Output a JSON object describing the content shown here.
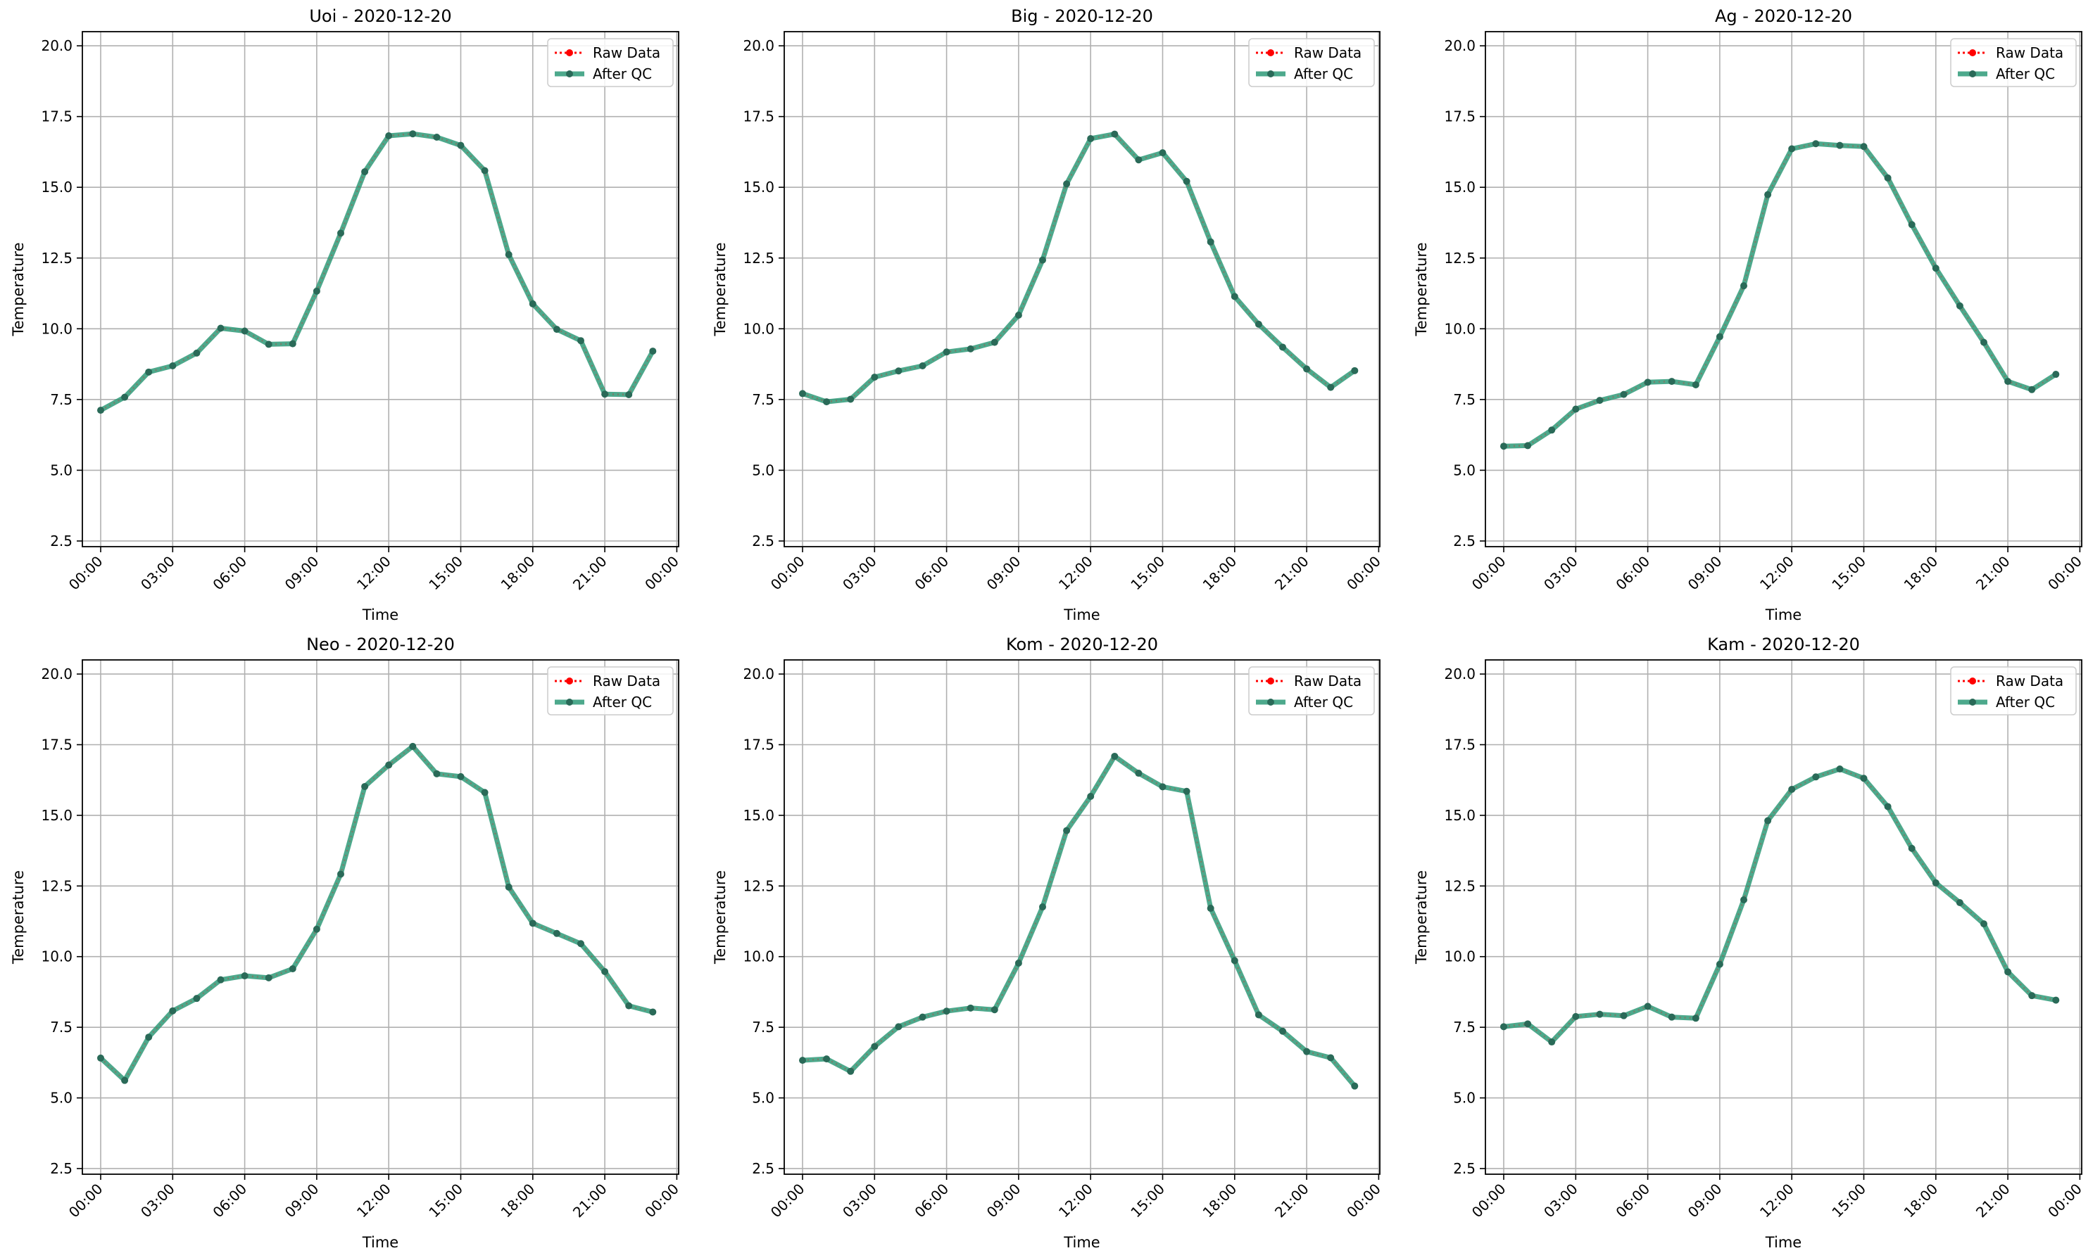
{
  "figure": {
    "shared": {
      "xlabel": "Time",
      "ylabel": "Temperature",
      "xticks": [
        "00:00",
        "03:00",
        "06:00",
        "09:00",
        "12:00",
        "15:00",
        "18:00",
        "21:00",
        "00:00"
      ],
      "yticks": [
        "2.5",
        "5.0",
        "7.5",
        "10.0",
        "12.5",
        "15.0",
        "17.5",
        "20.0"
      ],
      "legend": [
        "Raw Data",
        "After QC"
      ]
    },
    "colors": {
      "raw": "#ff0000",
      "qc": "#2e9a78",
      "grid": "#b0b0b0",
      "marker": "#2a6a58"
    }
  },
  "chart_data": [
    {
      "type": "line",
      "title": "Uoi - 2020-12-20",
      "xlabel": "Time",
      "ylabel": "Temperature",
      "x": [
        "00:00",
        "01:00",
        "02:00",
        "03:00",
        "04:00",
        "05:00",
        "06:00",
        "07:00",
        "08:00",
        "09:00",
        "10:00",
        "11:00",
        "12:00",
        "13:00",
        "14:00",
        "15:00",
        "16:00",
        "17:00",
        "18:00",
        "19:00",
        "20:00",
        "21:00",
        "22:00",
        "23:00"
      ],
      "series": [
        {
          "name": "Raw Data",
          "values": [
            7.12,
            7.58,
            8.47,
            8.69,
            9.14,
            10.02,
            9.92,
            9.45,
            9.47,
            11.33,
            13.38,
            15.55,
            16.82,
            16.89,
            16.77,
            16.48,
            15.59,
            12.62,
            10.88,
            9.98,
            9.58,
            7.69,
            7.67,
            9.21
          ]
        },
        {
          "name": "After QC",
          "values": [
            7.12,
            7.58,
            8.47,
            8.69,
            9.14,
            10.02,
            9.92,
            9.45,
            9.47,
            11.33,
            13.38,
            15.55,
            16.82,
            16.89,
            16.77,
            16.48,
            15.59,
            12.62,
            10.88,
            9.98,
            9.58,
            7.69,
            7.67,
            9.21
          ]
        }
      ],
      "ylim": [
        2.3,
        20.5
      ],
      "grid": true,
      "legend_position": "top-right"
    },
    {
      "type": "line",
      "title": "Big - 2020-12-20",
      "xlabel": "Time",
      "ylabel": "Temperature",
      "x": [
        "00:00",
        "01:00",
        "02:00",
        "03:00",
        "04:00",
        "05:00",
        "06:00",
        "07:00",
        "08:00",
        "09:00",
        "10:00",
        "11:00",
        "12:00",
        "13:00",
        "14:00",
        "15:00",
        "16:00",
        "17:00",
        "18:00",
        "19:00",
        "20:00",
        "21:00",
        "22:00",
        "23:00"
      ],
      "series": [
        {
          "name": "Raw Data",
          "values": [
            7.71,
            7.42,
            7.51,
            8.29,
            8.51,
            8.69,
            9.18,
            9.29,
            9.52,
            10.48,
            12.43,
            15.12,
            16.72,
            16.88,
            15.97,
            16.22,
            15.21,
            13.07,
            11.14,
            10.16,
            9.35,
            8.58,
            7.93,
            8.52
          ]
        },
        {
          "name": "After QC",
          "values": [
            7.71,
            7.42,
            7.51,
            8.29,
            8.51,
            8.69,
            9.18,
            9.29,
            9.52,
            10.48,
            12.43,
            15.12,
            16.72,
            16.88,
            15.97,
            16.22,
            15.21,
            13.07,
            11.14,
            10.16,
            9.35,
            8.58,
            7.93,
            8.52
          ]
        }
      ],
      "ylim": [
        2.3,
        20.5
      ],
      "grid": true,
      "legend_position": "top-right"
    },
    {
      "type": "line",
      "title": "Ag - 2020-12-20",
      "xlabel": "Time",
      "ylabel": "Temperature",
      "x": [
        "00:00",
        "01:00",
        "02:00",
        "03:00",
        "04:00",
        "05:00",
        "06:00",
        "07:00",
        "08:00",
        "09:00",
        "10:00",
        "11:00",
        "12:00",
        "13:00",
        "14:00",
        "15:00",
        "16:00",
        "17:00",
        "18:00",
        "19:00",
        "20:00",
        "21:00",
        "22:00",
        "23:00"
      ],
      "series": [
        {
          "name": "Raw Data",
          "values": [
            5.85,
            5.87,
            6.42,
            7.16,
            7.47,
            7.68,
            8.11,
            8.14,
            8.02,
            9.72,
            11.52,
            14.74,
            16.36,
            16.54,
            16.48,
            16.44,
            15.33,
            13.68,
            12.14,
            10.81,
            9.52,
            8.14,
            7.85,
            8.39
          ]
        },
        {
          "name": "After QC",
          "values": [
            5.85,
            5.87,
            6.42,
            7.16,
            7.47,
            7.68,
            8.11,
            8.14,
            8.02,
            9.72,
            11.52,
            14.74,
            16.36,
            16.54,
            16.48,
            16.44,
            15.33,
            13.68,
            12.14,
            10.81,
            9.52,
            8.14,
            7.85,
            8.39
          ]
        }
      ],
      "ylim": [
        2.3,
        20.5
      ],
      "grid": true,
      "legend_position": "top-right"
    },
    {
      "type": "line",
      "title": "Neo - 2020-12-20",
      "xlabel": "Time",
      "ylabel": "Temperature",
      "x": [
        "00:00",
        "01:00",
        "02:00",
        "03:00",
        "04:00",
        "05:00",
        "06:00",
        "07:00",
        "08:00",
        "09:00",
        "10:00",
        "11:00",
        "12:00",
        "13:00",
        "14:00",
        "15:00",
        "16:00",
        "17:00",
        "18:00",
        "19:00",
        "20:00",
        "21:00",
        "22:00",
        "23:00"
      ],
      "series": [
        {
          "name": "Raw Data",
          "values": [
            6.41,
            5.62,
            7.15,
            8.08,
            8.52,
            9.18,
            9.32,
            9.25,
            9.57,
            10.97,
            12.92,
            16.02,
            16.78,
            17.44,
            16.47,
            16.37,
            15.81,
            12.46,
            11.18,
            10.82,
            10.46,
            9.47,
            8.26,
            8.04
          ]
        },
        {
          "name": "After QC",
          "values": [
            6.41,
            5.62,
            7.15,
            8.08,
            8.52,
            9.18,
            9.32,
            9.25,
            9.57,
            10.97,
            12.92,
            16.02,
            16.78,
            17.44,
            16.47,
            16.37,
            15.81,
            12.46,
            11.18,
            10.82,
            10.46,
            9.47,
            8.26,
            8.04
          ]
        }
      ],
      "ylim": [
        2.3,
        20.5
      ],
      "grid": true,
      "legend_position": "top-right"
    },
    {
      "type": "line",
      "title": "Kom - 2020-12-20",
      "xlabel": "Time",
      "ylabel": "Temperature",
      "x": [
        "00:00",
        "01:00",
        "02:00",
        "03:00",
        "04:00",
        "05:00",
        "06:00",
        "07:00",
        "08:00",
        "09:00",
        "10:00",
        "11:00",
        "12:00",
        "13:00",
        "14:00",
        "15:00",
        "16:00",
        "17:00",
        "18:00",
        "19:00",
        "20:00",
        "21:00",
        "22:00",
        "23:00"
      ],
      "series": [
        {
          "name": "Raw Data",
          "values": [
            6.33,
            6.38,
            5.94,
            6.82,
            7.52,
            7.86,
            8.07,
            8.18,
            8.12,
            9.77,
            11.76,
            14.46,
            15.67,
            17.09,
            16.49,
            16.01,
            15.85,
            11.71,
            9.86,
            7.94,
            7.36,
            6.64,
            6.42,
            5.42
          ]
        },
        {
          "name": "After QC",
          "values": [
            6.33,
            6.38,
            5.94,
            6.82,
            7.52,
            7.86,
            8.07,
            8.18,
            8.12,
            9.77,
            11.76,
            14.46,
            15.67,
            17.09,
            16.49,
            16.01,
            15.85,
            11.71,
            9.86,
            7.94,
            7.36,
            6.64,
            6.42,
            5.42
          ]
        }
      ],
      "ylim": [
        2.3,
        20.5
      ],
      "grid": true,
      "legend_position": "top-right"
    },
    {
      "type": "line",
      "title": "Kam - 2020-12-20",
      "xlabel": "Time",
      "ylabel": "Temperature",
      "x": [
        "00:00",
        "01:00",
        "02:00",
        "03:00",
        "04:00",
        "05:00",
        "06:00",
        "07:00",
        "08:00",
        "09:00",
        "10:00",
        "11:00",
        "12:00",
        "13:00",
        "14:00",
        "15:00",
        "16:00",
        "17:00",
        "18:00",
        "19:00",
        "20:00",
        "21:00",
        "22:00",
        "23:00"
      ],
      "series": [
        {
          "name": "Raw Data",
          "values": [
            7.52,
            7.62,
            6.98,
            7.88,
            7.96,
            7.91,
            8.24,
            7.86,
            7.82,
            9.73,
            12.01,
            14.81,
            15.92,
            16.36,
            16.64,
            16.31,
            15.31,
            13.83,
            12.61,
            11.91,
            11.16,
            9.46,
            8.62,
            8.46
          ]
        },
        {
          "name": "After QC",
          "values": [
            7.52,
            7.62,
            6.98,
            7.88,
            7.96,
            7.91,
            8.24,
            7.86,
            7.82,
            9.73,
            12.01,
            14.81,
            15.92,
            16.36,
            16.64,
            16.31,
            15.31,
            13.83,
            12.61,
            11.91,
            11.16,
            9.46,
            8.62,
            8.46
          ]
        }
      ],
      "ylim": [
        2.3,
        20.5
      ],
      "grid": true,
      "legend_position": "top-right"
    }
  ]
}
